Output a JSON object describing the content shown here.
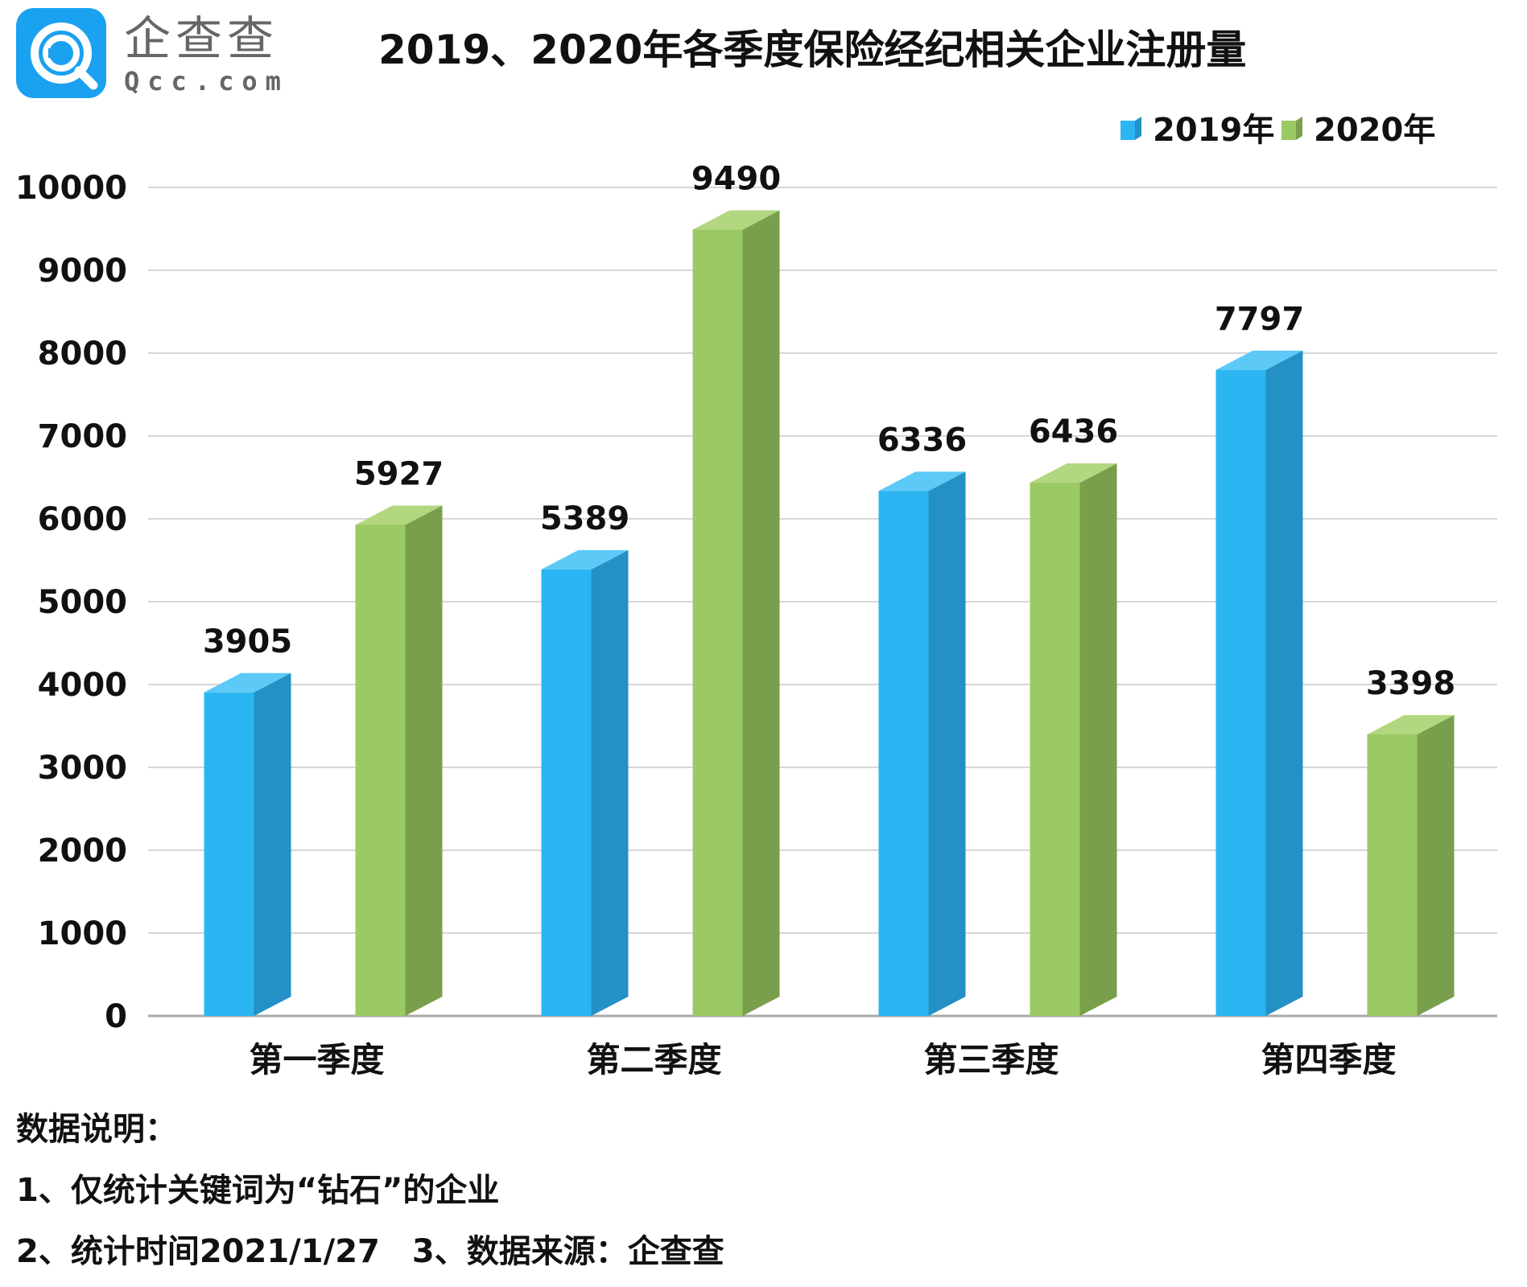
{
  "logo": {
    "brand_cn": "企查查",
    "brand_en": "Qcc.com"
  },
  "chart_data": {
    "type": "bar",
    "title": "2019、2020年各季度保险经纪相关企业注册量",
    "categories": [
      "第一季度",
      "第二季度",
      "第三季度",
      "第四季度"
    ],
    "series": [
      {
        "name": "2019年",
        "values": [
          3905,
          5389,
          6336,
          7797
        ],
        "color": "#2bb5f2",
        "side_color": "#2391c5",
        "top_color": "#5cc9f6"
      },
      {
        "name": "2020年",
        "values": [
          5927,
          9490,
          6436,
          3398
        ],
        "color": "#9bc963",
        "side_color": "#7a9f4c",
        "top_color": "#b2d780"
      }
    ],
    "ylim": [
      0,
      10000
    ],
    "yticks": [
      "0",
      "1000",
      "2000",
      "3000",
      "4000",
      "5000",
      "6000",
      "7000",
      "8000",
      "9000",
      "10000"
    ],
    "grid": true,
    "legend": "top-right",
    "xlabel": "",
    "ylabel": ""
  },
  "notes": {
    "heading": "数据说明：",
    "line1": "1、仅统计关键词为“钻石”的企业",
    "line2": "2、统计时间2021/1/27　3、数据来源：企查查"
  }
}
